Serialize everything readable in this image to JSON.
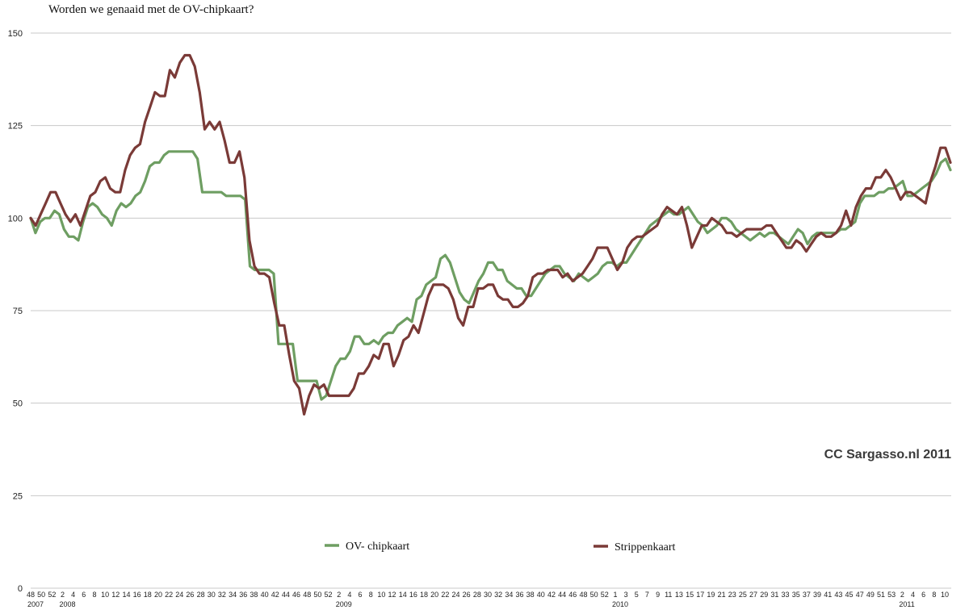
{
  "chart_data": {
    "type": "line",
    "title": "Worden we genaaid met de OV-chipkaart?",
    "watermark": "CC Sargasso.nl 2011",
    "ylim": [
      0,
      150
    ],
    "yticks": [
      0,
      25,
      50,
      75,
      100,
      125,
      150
    ],
    "grid": true,
    "legend_position": "bottom",
    "x_tick_labels": [
      "48",
      "50",
      "52",
      "2",
      "4",
      "6",
      "8",
      "10",
      "12",
      "14",
      "16",
      "18",
      "20",
      "22",
      "24",
      "26",
      "28",
      "30",
      "32",
      "34",
      "36",
      "38",
      "40",
      "42",
      "44",
      "46",
      "48",
      "50",
      "52",
      "2",
      "4",
      "6",
      "8",
      "10",
      "12",
      "14",
      "16",
      "18",
      "20",
      "22",
      "24",
      "26",
      "28",
      "30",
      "32",
      "34",
      "36",
      "38",
      "40",
      "42",
      "44",
      "46",
      "48",
      "50",
      "52",
      "1",
      "3",
      "5",
      "7",
      "9",
      "11",
      "13",
      "15",
      "17",
      "19",
      "21",
      "23",
      "25",
      "27",
      "29",
      "31",
      "33",
      "35",
      "37",
      "39",
      "41",
      "43",
      "45",
      "47",
      "49",
      "51",
      "53",
      "2",
      "4",
      "6",
      "8",
      "10"
    ],
    "year_labels": [
      {
        "label": "2007",
        "tick_index": 0
      },
      {
        "label": "2008",
        "tick_index": 3
      },
      {
        "label": "2009",
        "tick_index": 29
      },
      {
        "label": "2010",
        "tick_index": 55
      },
      {
        "label": "2011",
        "tick_index": 82
      }
    ],
    "series": [
      {
        "name": "OV- chipkaart",
        "color": "#6e9e62",
        "values": [
          100,
          96,
          99,
          100,
          100,
          102,
          101,
          97,
          95,
          95,
          94,
          99,
          103,
          104,
          103,
          101,
          100,
          98,
          102,
          104,
          103,
          104,
          106,
          107,
          110,
          114,
          115,
          115,
          117,
          118,
          118,
          118,
          118,
          118,
          118,
          116,
          107,
          107,
          107,
          107,
          107,
          106,
          106,
          106,
          106,
          105,
          87,
          86,
          86,
          86,
          86,
          85,
          66,
          66,
          66,
          66,
          56,
          56,
          56,
          56,
          56,
          51,
          52,
          56,
          60,
          62,
          62,
          64,
          68,
          68,
          66,
          66,
          67,
          66,
          68,
          69,
          69,
          71,
          72,
          73,
          72,
          78,
          79,
          82,
          83,
          84,
          89,
          90,
          88,
          84,
          80,
          78,
          77,
          80,
          83,
          85,
          88,
          88,
          86,
          86,
          83,
          82,
          81,
          81,
          79,
          79,
          81,
          83,
          85,
          86,
          87,
          87,
          85,
          84,
          83,
          85,
          84,
          83,
          84,
          85,
          87,
          88,
          88,
          87,
          88,
          88,
          90,
          92,
          94,
          96,
          98,
          99,
          100,
          101,
          102,
          101,
          101,
          102,
          103,
          101,
          99,
          98,
          96,
          97,
          98,
          100,
          100,
          99,
          97,
          96,
          95,
          94,
          95,
          96,
          95,
          96,
          96,
          95,
          94,
          93,
          95,
          97,
          96,
          93,
          95,
          96,
          96,
          96,
          96,
          96,
          97,
          97,
          98,
          99,
          104,
          106,
          106,
          106,
          107,
          107,
          108,
          108,
          109,
          110,
          106,
          106,
          107,
          108,
          109,
          110,
          112,
          115,
          116,
          113
        ]
      },
      {
        "name": "Strippenkaart",
        "color": "#7a3a37",
        "values": [
          100,
          98,
          101,
          104,
          107,
          107,
          104,
          101,
          99,
          101,
          98,
          102,
          106,
          107,
          110,
          111,
          108,
          107,
          107,
          113,
          117,
          119,
          120,
          126,
          130,
          134,
          133,
          133,
          140,
          138,
          142,
          144,
          144,
          141,
          134,
          124,
          126,
          124,
          126,
          121,
          115,
          115,
          118,
          111,
          94,
          87,
          85,
          85,
          84,
          77,
          71,
          71,
          63,
          56,
          54,
          47,
          52,
          55,
          54,
          55,
          52,
          52,
          52,
          52,
          52,
          54,
          58,
          58,
          60,
          63,
          62,
          66,
          66,
          60,
          63,
          67,
          68,
          71,
          69,
          74,
          79,
          82,
          82,
          82,
          81,
          78,
          73,
          71,
          76,
          76,
          81,
          81,
          82,
          82,
          79,
          78,
          78,
          76,
          76,
          77,
          79,
          84,
          85,
          85,
          86,
          86,
          86,
          84,
          85,
          83,
          84,
          85,
          87,
          89,
          92,
          92,
          92,
          89,
          86,
          88,
          92,
          94,
          95,
          95,
          96,
          97,
          98,
          101,
          103,
          102,
          101,
          103,
          98,
          92,
          95,
          98,
          98,
          100,
          99,
          98,
          96,
          96,
          95,
          96,
          97,
          97,
          97,
          97,
          98,
          98,
          96,
          94,
          92,
          92,
          94,
          93,
          91,
          93,
          95,
          96,
          95,
          95,
          96,
          98,
          102,
          98,
          103,
          106,
          108,
          108,
          111,
          111,
          113,
          111,
          108,
          105,
          107,
          107,
          106,
          105,
          104,
          110,
          114,
          119,
          119,
          115
        ]
      }
    ]
  }
}
